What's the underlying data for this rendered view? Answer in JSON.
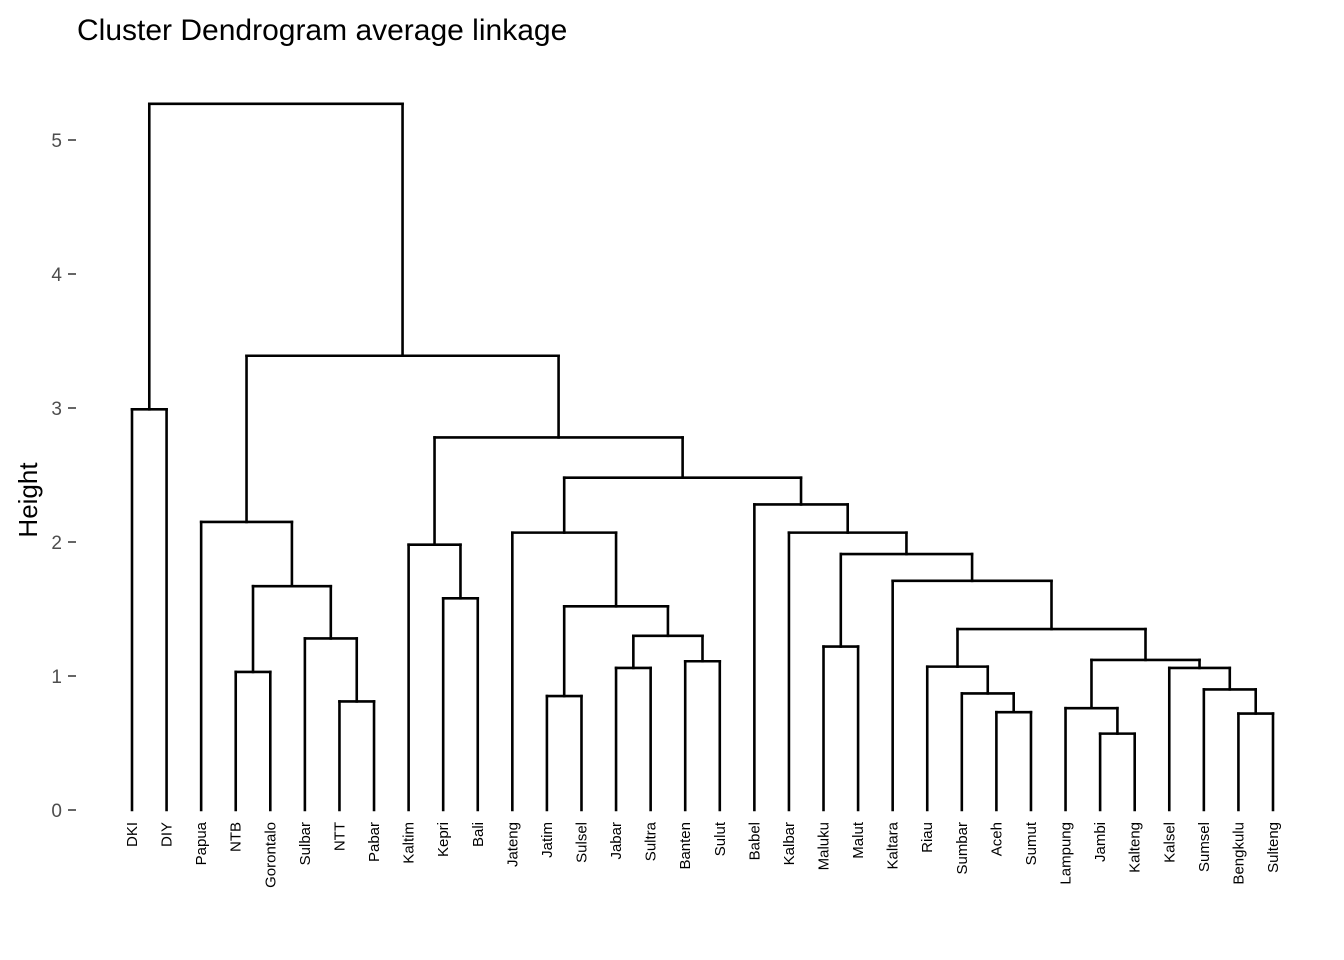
{
  "chart_data": {
    "type": "dendrogram",
    "title": "Cluster Dendrogram average linkage",
    "xlabel": "",
    "ylabel": "Height",
    "ylim": [
      0,
      5.3
    ],
    "y_ticks": [
      0,
      1,
      2,
      3,
      4,
      5
    ],
    "grid": false,
    "leaves": [
      "DKI",
      "DIY",
      "Papua",
      "NTB",
      "Gorontalo",
      "Sulbar",
      "NTT",
      "Pabar",
      "Kaltim",
      "Kepri",
      "Bali",
      "Jateng",
      "Jatim",
      "Sulsel",
      "Jabar",
      "Sultra",
      "Banten",
      "Sulut",
      "Babel",
      "Kalbar",
      "Maluku",
      "Malut",
      "Kaltara",
      "Riau",
      "Sumbar",
      "Aceh",
      "Sumut",
      "Lampung",
      "Jambi",
      "Kalteng",
      "Kalsel",
      "Sumsel",
      "Bengkulu",
      "Sulteng"
    ],
    "merges": [
      {
        "left": "Jambi",
        "right": "Kalteng",
        "height": 0.57
      },
      {
        "left": "Bengkulu",
        "right": "Sulteng",
        "height": 0.72
      },
      {
        "left": "Aceh",
        "right": "Sumut",
        "height": 0.73
      },
      {
        "left": "Lampung",
        "right": [
          "Jambi",
          "Kalteng"
        ],
        "height": 0.76
      },
      {
        "left": "NTT",
        "right": "Pabar",
        "height": 0.81
      },
      {
        "left": "Jatim",
        "right": "Sulsel",
        "height": 0.85
      },
      {
        "left": "Sumbar",
        "right": [
          "Aceh",
          "Sumut"
        ],
        "height": 0.87
      },
      {
        "left": "Sumsel",
        "right": [
          "Bengkulu",
          "Sulteng"
        ],
        "height": 0.9
      },
      {
        "left": "NTB",
        "right": "Gorontalo",
        "height": 1.03
      },
      {
        "left": "Kalsel",
        "right": [
          "Sumsel",
          "Bengkulu",
          "Sulteng"
        ],
        "height": 1.06
      },
      {
        "left": "Jabar",
        "right": "Sultra",
        "height": 1.06
      },
      {
        "left": "Riau",
        "right": [
          "Sumbar",
          "Aceh",
          "Sumut"
        ],
        "height": 1.07
      },
      {
        "left": "Banten",
        "right": "Sulut",
        "height": 1.11
      },
      {
        "left": [
          "Lampung",
          "Jambi",
          "Kalteng"
        ],
        "right": [
          "Kalsel",
          "Sumsel",
          "Bengkulu",
          "Sulteng"
        ],
        "height": 1.12
      },
      {
        "left": "Maluku",
        "right": "Malut",
        "height": 1.22
      },
      {
        "left": "Sulbar",
        "right": [
          "NTT",
          "Pabar"
        ],
        "height": 1.28
      },
      {
        "left": [
          "Jabar",
          "Sultra"
        ],
        "right": [
          "Banten",
          "Sulut"
        ],
        "height": 1.3
      },
      {
        "left": [
          "Riau",
          "Sumbar",
          "Aceh",
          "Sumut"
        ],
        "right": [
          "Lampung",
          "Jambi",
          "Kalteng",
          "Kalsel",
          "Sumsel",
          "Bengkulu",
          "Sulteng"
        ],
        "height": 1.35
      },
      {
        "left": [
          "Jatim",
          "Sulsel"
        ],
        "right": [
          "Jabar",
          "Sultra",
          "Banten",
          "Sulut"
        ],
        "height": 1.52
      },
      {
        "left": "Kepri",
        "right": "Bali",
        "height": 1.58
      },
      {
        "left": [
          "NTB",
          "Gorontalo"
        ],
        "right": [
          "Sulbar",
          "NTT",
          "Pabar"
        ],
        "height": 1.67
      },
      {
        "left": "Kaltara",
        "right": [
          "Riau",
          "Sumbar",
          "Aceh",
          "Sumut",
          "Lampung",
          "Jambi",
          "Kalteng",
          "Kalsel",
          "Sumsel",
          "Bengkulu",
          "Sulteng"
        ],
        "height": 1.71
      },
      {
        "left": [
          "Maluku",
          "Malut"
        ],
        "right": [
          "Kaltara",
          "Riau",
          "Sumbar",
          "Aceh",
          "Sumut",
          "Lampung",
          "Jambi",
          "Kalteng",
          "Kalsel",
          "Sumsel",
          "Bengkulu",
          "Sulteng"
        ],
        "height": 1.91
      },
      {
        "left": "Kaltim",
        "right": [
          "Kepri",
          "Bali"
        ],
        "height": 1.98
      },
      {
        "left": "Jateng",
        "right": [
          "Jatim",
          "Sulsel",
          "Jabar",
          "Sultra",
          "Banten",
          "Sulut"
        ],
        "height": 2.07
      },
      {
        "left": "Kalbar",
        "right": [
          "Maluku",
          "Malut",
          "Kaltara",
          "Riau",
          "Sumbar",
          "Aceh",
          "Sumut",
          "Lampung",
          "Jambi",
          "Kalteng",
          "Kalsel",
          "Sumsel",
          "Bengkulu",
          "Sulteng"
        ],
        "height": 2.07
      },
      {
        "left": "Papua",
        "right": [
          "NTB",
          "Gorontalo",
          "Sulbar",
          "NTT",
          "Pabar"
        ],
        "height": 2.15
      },
      {
        "left": "Babel",
        "right": [
          "Kalbar",
          "Maluku",
          "Malut",
          "Kaltara",
          "Riau",
          "Sumbar",
          "Aceh",
          "Sumut",
          "Lampung",
          "Jambi",
          "Kalteng",
          "Kalsel",
          "Sumsel",
          "Bengkulu",
          "Sulteng"
        ],
        "height": 2.28
      },
      {
        "left": [
          "Jateng",
          "Jatim",
          "Sulsel",
          "Jabar",
          "Sultra",
          "Banten",
          "Sulut"
        ],
        "right": [
          "Babel",
          "Kalbar",
          "Maluku",
          "Malut",
          "Kaltara",
          "Riau",
          "Sumbar",
          "Aceh",
          "Sumut",
          "Lampung",
          "Jambi",
          "Kalteng",
          "Kalsel",
          "Sumsel",
          "Bengkulu",
          "Sulteng"
        ],
        "height": 2.48
      },
      {
        "left": [
          "Kaltim",
          "Kepri",
          "Bali"
        ],
        "right": [
          "Jateng",
          "Jatim",
          "Sulsel",
          "Jabar",
          "Sultra",
          "Banten",
          "Sulut",
          "Babel",
          "Kalbar",
          "Maluku",
          "Malut",
          "Kaltara",
          "Riau",
          "Sumbar",
          "Aceh",
          "Sumut",
          "Lampung",
          "Jambi",
          "Kalteng",
          "Kalsel",
          "Sumsel",
          "Bengkulu",
          "Sulteng"
        ],
        "height": 2.78
      },
      {
        "left": "DKI",
        "right": "DIY",
        "height": 2.99
      },
      {
        "left": [
          "Papua",
          "NTB",
          "Gorontalo",
          "Sulbar",
          "NTT",
          "Pabar"
        ],
        "right": [
          "Kaltim",
          "Kepri",
          "Bali",
          "Jateng",
          "Jatim",
          "Sulsel",
          "Jabar",
          "Sultra",
          "Banten",
          "Sulut",
          "Babel",
          "Kalbar",
          "Maluku",
          "Malut",
          "Kaltara",
          "Riau",
          "Sumbar",
          "Aceh",
          "Sumut",
          "Lampung",
          "Jambi",
          "Kalteng",
          "Kalsel",
          "Sumsel",
          "Bengkulu",
          "Sulteng"
        ],
        "height": 3.39
      },
      {
        "left": [
          "DKI",
          "DIY"
        ],
        "right": [
          "Papua",
          "NTB",
          "Gorontalo",
          "Sulbar",
          "NTT",
          "Pabar",
          "Kaltim",
          "Kepri",
          "Bali",
          "Jateng",
          "Jatim",
          "Sulsel",
          "Jabar",
          "Sultra",
          "Banten",
          "Sulut",
          "Babel",
          "Kalbar",
          "Maluku",
          "Malut",
          "Kaltara",
          "Riau",
          "Sumbar",
          "Aceh",
          "Sumut",
          "Lampung",
          "Jambi",
          "Kalteng",
          "Kalsel",
          "Sumsel",
          "Bengkulu",
          "Sulteng"
        ],
        "height": 5.27
      }
    ]
  }
}
